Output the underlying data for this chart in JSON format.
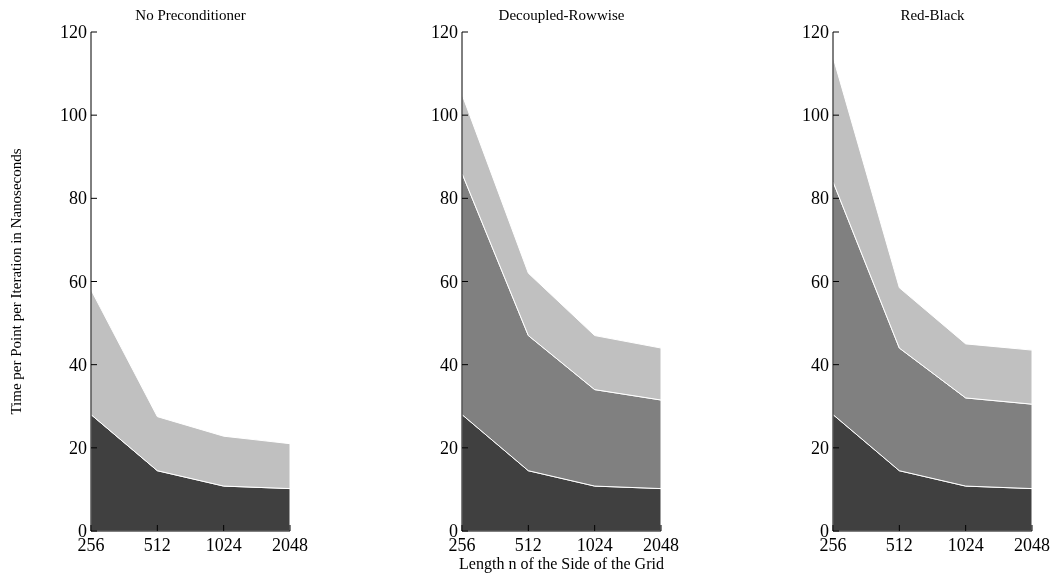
{
  "chart_data": [
    {
      "type": "area",
      "stacked": true,
      "title": "No Preconditioner",
      "ylabel": "Time per Point per Iteration in Nanoseconds",
      "categories": [
        "256",
        "512",
        "1024",
        "2048"
      ],
      "ylim": [
        0,
        120
      ],
      "yticks": [
        0,
        20,
        40,
        60,
        80,
        100,
        120
      ],
      "series": [
        {
          "color": "#404040",
          "values": [
            28,
            14.5,
            10.8,
            10.2
          ]
        },
        {
          "color": "#c0c0c0",
          "values": [
            30,
            13,
            12,
            10.8
          ]
        }
      ]
    },
    {
      "type": "area",
      "stacked": true,
      "title": "Decoupled-Rowwise",
      "xlabel": "Length n of the Side of the Grid",
      "categories": [
        "256",
        "512",
        "1024",
        "2048"
      ],
      "ylim": [
        0,
        120
      ],
      "yticks": [
        0,
        20,
        40,
        60,
        80,
        100,
        120
      ],
      "series": [
        {
          "color": "#404040",
          "values": [
            28,
            14.5,
            10.8,
            10.2
          ]
        },
        {
          "color": "#808080",
          "values": [
            58,
            32.5,
            23.2,
            21.3
          ]
        },
        {
          "color": "#c0c0c0",
          "values": [
            19,
            15,
            13,
            12.5
          ]
        }
      ]
    },
    {
      "type": "area",
      "stacked": true,
      "title": "Red-Black",
      "categories": [
        "256",
        "512",
        "1024",
        "2048"
      ],
      "ylim": [
        0,
        120
      ],
      "yticks": [
        0,
        20,
        40,
        60,
        80,
        100,
        120
      ],
      "series": [
        {
          "color": "#404040",
          "values": [
            28,
            14.5,
            10.8,
            10.2
          ]
        },
        {
          "color": "#808080",
          "values": [
            56,
            29.5,
            21.2,
            20.3
          ]
        },
        {
          "color": "#c0c0c0",
          "values": [
            30,
            14.5,
            13,
            13
          ]
        }
      ]
    }
  ]
}
